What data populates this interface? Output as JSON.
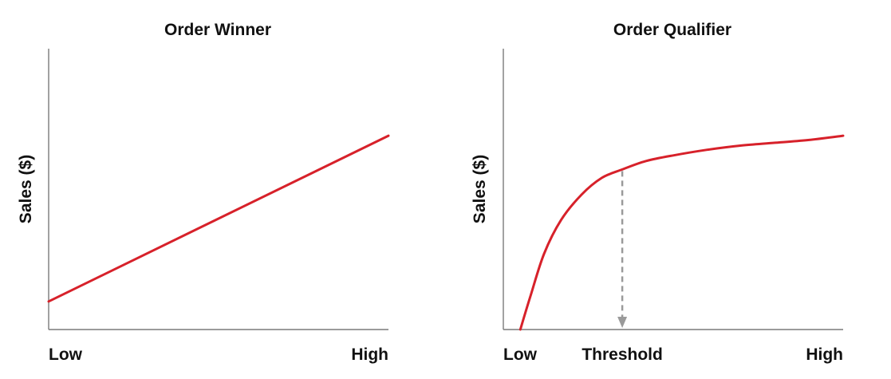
{
  "chart_data": [
    {
      "type": "line",
      "title": "Order Winner",
      "ylabel": "Sales ($)",
      "xlabel": "",
      "x_ticks": [
        "Low",
        "High"
      ],
      "xlim": [
        0,
        1
      ],
      "ylim": [
        0,
        1
      ],
      "grid": false,
      "line_color": "#d7212a",
      "series": [
        {
          "x": [
            0,
            1
          ],
          "y": [
            0.1,
            0.69
          ]
        }
      ]
    },
    {
      "type": "line",
      "title": "Order Qualifier",
      "ylabel": "Sales ($)",
      "xlabel": "",
      "x_ticks": [
        "Low",
        "Threshold",
        "High"
      ],
      "x_tick_values": [
        0,
        0.35,
        1
      ],
      "xlim": [
        0,
        1
      ],
      "ylim": [
        0,
        1
      ],
      "grid": false,
      "line_color": "#d7212a",
      "threshold_color": "#9a9a9a",
      "threshold": {
        "x": 0.35,
        "y": 0.57
      },
      "series": [
        {
          "x": [
            0.05,
            0.08,
            0.12,
            0.17,
            0.23,
            0.29,
            0.35,
            0.42,
            0.5,
            0.6,
            0.7,
            0.8,
            0.9,
            1.0
          ],
          "y": [
            0.0,
            0.12,
            0.27,
            0.39,
            0.48,
            0.54,
            0.57,
            0.6,
            0.62,
            0.64,
            0.655,
            0.665,
            0.675,
            0.69
          ]
        }
      ]
    }
  ]
}
